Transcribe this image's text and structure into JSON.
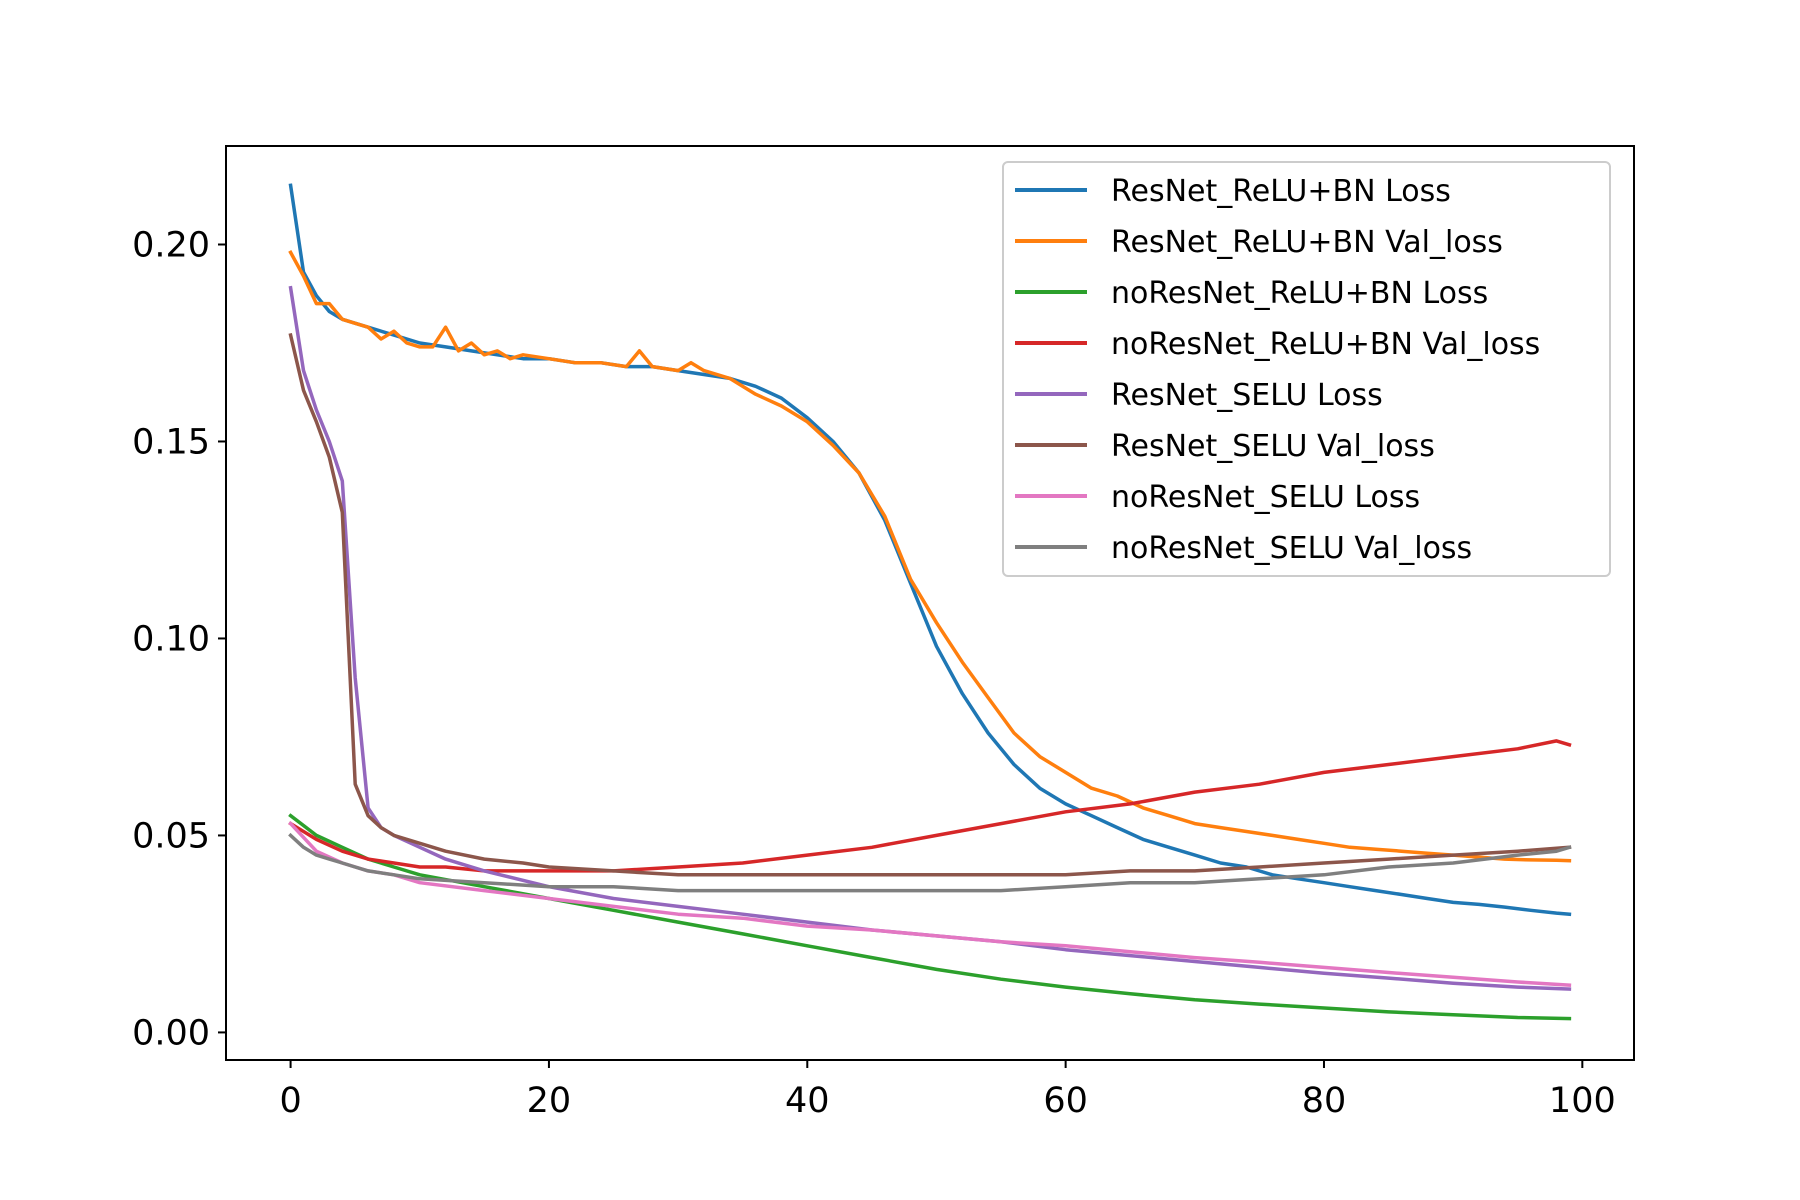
{
  "chart_data": {
    "type": "line",
    "title": "",
    "xlabel": "",
    "ylabel": "",
    "xlim": [
      -5,
      104
    ],
    "ylim": [
      -0.007,
      0.225
    ],
    "xticks": [
      0,
      20,
      40,
      60,
      80,
      100
    ],
    "xtick_labels": [
      "0",
      "20",
      "40",
      "60",
      "80",
      "100"
    ],
    "yticks": [
      0,
      0.05,
      0.1,
      0.15,
      0.2
    ],
    "ytick_labels": [
      "0.00",
      "0.05",
      "0.10",
      "0.15",
      "0.20"
    ],
    "grid": false,
    "legend_position": "top-right",
    "series": [
      {
        "name": "ResNet_ReLU+BN Loss",
        "color": "#1f77b4",
        "x": [
          0,
          1,
          2,
          3,
          4,
          6,
          8,
          10,
          12,
          14,
          16,
          18,
          20,
          22,
          24,
          26,
          28,
          30,
          32,
          34,
          36,
          38,
          40,
          42,
          44,
          46,
          48,
          50,
          52,
          54,
          56,
          58,
          60,
          62,
          64,
          66,
          68,
          70,
          72,
          74,
          76,
          78,
          80,
          82,
          84,
          86,
          88,
          90,
          92,
          94,
          96,
          98,
          99
        ],
        "values": [
          0.215,
          0.193,
          0.187,
          0.183,
          0.181,
          0.179,
          0.177,
          0.175,
          0.174,
          0.173,
          0.172,
          0.171,
          0.171,
          0.17,
          0.17,
          0.169,
          0.169,
          0.168,
          0.167,
          0.166,
          0.164,
          0.161,
          0.156,
          0.15,
          0.142,
          0.13,
          0.114,
          0.098,
          0.086,
          0.076,
          0.068,
          0.062,
          0.058,
          0.055,
          0.052,
          0.049,
          0.047,
          0.045,
          0.043,
          0.042,
          0.04,
          0.039,
          0.038,
          0.037,
          0.036,
          0.035,
          0.034,
          0.033,
          0.0325,
          0.0318,
          0.031,
          0.0303,
          0.03
        ]
      },
      {
        "name": "ResNet_ReLU+BN Val_loss",
        "color": "#ff7f0e",
        "x": [
          0,
          1,
          2,
          3,
          4,
          5,
          6,
          7,
          8,
          9,
          10,
          11,
          12,
          13,
          14,
          15,
          16,
          17,
          18,
          20,
          22,
          24,
          26,
          27,
          28,
          30,
          31,
          32,
          34,
          36,
          38,
          40,
          42,
          44,
          46,
          48,
          50,
          52,
          54,
          56,
          58,
          60,
          62,
          64,
          66,
          68,
          70,
          72,
          74,
          76,
          78,
          80,
          82,
          84,
          86,
          88,
          90,
          92,
          94,
          96,
          98,
          99
        ],
        "values": [
          0.198,
          0.192,
          0.185,
          0.185,
          0.181,
          0.18,
          0.179,
          0.176,
          0.178,
          0.175,
          0.174,
          0.174,
          0.179,
          0.173,
          0.175,
          0.172,
          0.173,
          0.171,
          0.172,
          0.171,
          0.17,
          0.17,
          0.169,
          0.173,
          0.169,
          0.168,
          0.17,
          0.168,
          0.166,
          0.162,
          0.159,
          0.155,
          0.149,
          0.142,
          0.131,
          0.115,
          0.104,
          0.094,
          0.085,
          0.076,
          0.07,
          0.066,
          0.062,
          0.06,
          0.057,
          0.055,
          0.053,
          0.052,
          0.051,
          0.05,
          0.049,
          0.048,
          0.047,
          0.0465,
          0.046,
          0.0455,
          0.045,
          0.0445,
          0.044,
          0.0438,
          0.0437,
          0.0436
        ]
      },
      {
        "name": "noResNet_ReLU+BN Loss",
        "color": "#2ca02c",
        "x": [
          0,
          2,
          4,
          6,
          8,
          10,
          15,
          20,
          25,
          30,
          35,
          40,
          45,
          50,
          55,
          60,
          65,
          70,
          75,
          80,
          85,
          90,
          95,
          99
        ],
        "values": [
          0.055,
          0.05,
          0.047,
          0.044,
          0.042,
          0.04,
          0.037,
          0.034,
          0.031,
          0.028,
          0.025,
          0.022,
          0.019,
          0.016,
          0.0135,
          0.0115,
          0.0098,
          0.0083,
          0.0072,
          0.0062,
          0.0052,
          0.0045,
          0.0038,
          0.0035
        ]
      },
      {
        "name": "noResNet_ReLU+BN Val_loss",
        "color": "#d62728",
        "x": [
          0,
          2,
          4,
          6,
          8,
          10,
          12,
          15,
          20,
          25,
          30,
          35,
          40,
          45,
          50,
          55,
          60,
          65,
          70,
          75,
          80,
          85,
          90,
          95,
          98,
          99
        ],
        "values": [
          0.053,
          0.049,
          0.046,
          0.044,
          0.043,
          0.042,
          0.042,
          0.041,
          0.041,
          0.041,
          0.042,
          0.043,
          0.045,
          0.047,
          0.05,
          0.053,
          0.056,
          0.058,
          0.061,
          0.063,
          0.066,
          0.068,
          0.07,
          0.072,
          0.074,
          0.073
        ]
      },
      {
        "name": "ResNet_SELU Loss",
        "color": "#9467bd",
        "x": [
          0,
          1,
          2,
          3,
          4,
          5,
          6,
          7,
          8,
          10,
          12,
          15,
          20,
          25,
          30,
          35,
          40,
          45,
          50,
          55,
          60,
          65,
          70,
          75,
          80,
          85,
          90,
          95,
          99
        ],
        "values": [
          0.189,
          0.168,
          0.158,
          0.15,
          0.14,
          0.09,
          0.057,
          0.052,
          0.05,
          0.047,
          0.044,
          0.041,
          0.037,
          0.034,
          0.032,
          0.03,
          0.028,
          0.026,
          0.0245,
          0.023,
          0.021,
          0.0195,
          0.018,
          0.0165,
          0.015,
          0.0138,
          0.0125,
          0.0115,
          0.011
        ]
      },
      {
        "name": "ResNet_SELU Val_loss",
        "color": "#8c564b",
        "x": [
          0,
          1,
          2,
          3,
          4,
          5,
          6,
          7,
          8,
          10,
          12,
          15,
          18,
          20,
          25,
          30,
          35,
          40,
          45,
          50,
          55,
          60,
          65,
          70,
          75,
          80,
          85,
          90,
          95,
          99
        ],
        "values": [
          0.177,
          0.163,
          0.155,
          0.146,
          0.132,
          0.063,
          0.055,
          0.052,
          0.05,
          0.048,
          0.046,
          0.044,
          0.043,
          0.042,
          0.041,
          0.04,
          0.04,
          0.04,
          0.04,
          0.04,
          0.04,
          0.04,
          0.041,
          0.041,
          0.042,
          0.043,
          0.044,
          0.045,
          0.046,
          0.047
        ]
      },
      {
        "name": "noResNet_SELU Loss",
        "color": "#e377c2",
        "x": [
          0,
          2,
          4,
          6,
          8,
          10,
          15,
          20,
          25,
          30,
          35,
          40,
          45,
          50,
          55,
          60,
          65,
          70,
          75,
          80,
          85,
          90,
          95,
          99
        ],
        "values": [
          0.053,
          0.046,
          0.043,
          0.041,
          0.04,
          0.038,
          0.036,
          0.034,
          0.032,
          0.03,
          0.029,
          0.027,
          0.026,
          0.0245,
          0.023,
          0.022,
          0.0205,
          0.019,
          0.0178,
          0.0165,
          0.0152,
          0.014,
          0.0128,
          0.012
        ]
      },
      {
        "name": "noResNet_SELU Val_loss",
        "color": "#7f7f7f",
        "x": [
          0,
          1,
          2,
          3,
          4,
          5,
          6,
          8,
          10,
          15,
          20,
          25,
          30,
          35,
          40,
          45,
          50,
          55,
          60,
          65,
          70,
          75,
          80,
          85,
          90,
          95,
          98,
          99
        ],
        "values": [
          0.05,
          0.047,
          0.045,
          0.044,
          0.043,
          0.042,
          0.041,
          0.04,
          0.039,
          0.038,
          0.037,
          0.037,
          0.036,
          0.036,
          0.036,
          0.036,
          0.036,
          0.036,
          0.037,
          0.038,
          0.038,
          0.039,
          0.04,
          0.042,
          0.043,
          0.045,
          0.046,
          0.047
        ]
      }
    ]
  }
}
